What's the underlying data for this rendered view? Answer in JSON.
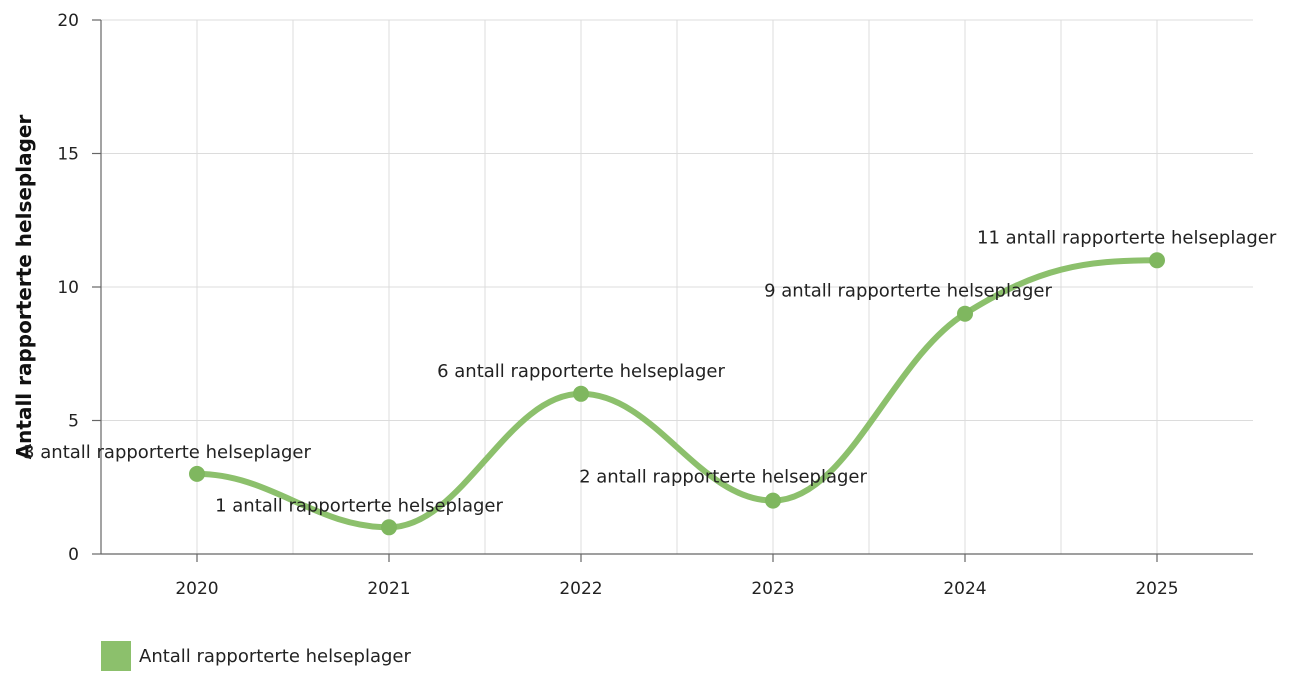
{
  "chart_data": {
    "type": "line",
    "x": [
      "2020",
      "2021",
      "2022",
      "2023",
      "2024",
      "2025"
    ],
    "series": [
      {
        "name": "Antall rapporterte helseplager",
        "values": [
          3,
          1,
          6,
          2,
          9,
          11
        ],
        "data_labels": [
          "3 antall rapporterte helseplager",
          "1 antall rapporterte helseplager",
          "6 antall rapporterte helseplager",
          "2 antall rapporterte helseplager",
          "9 antall rapporterte helseplager",
          "11 antall rapporterte helseplager"
        ],
        "color": "#8cc06c"
      }
    ],
    "ylabel": "Antall rapporterte helseplager",
    "xlabel": "",
    "ylim": [
      0,
      20
    ],
    "yticks": [
      "0",
      "5",
      "10",
      "15",
      "20"
    ],
    "smooth": true,
    "grid": true,
    "legend_position": "bottom-left"
  },
  "legend": {
    "label": "Antall rapporterte helseplager",
    "color": "#8cc06c"
  }
}
